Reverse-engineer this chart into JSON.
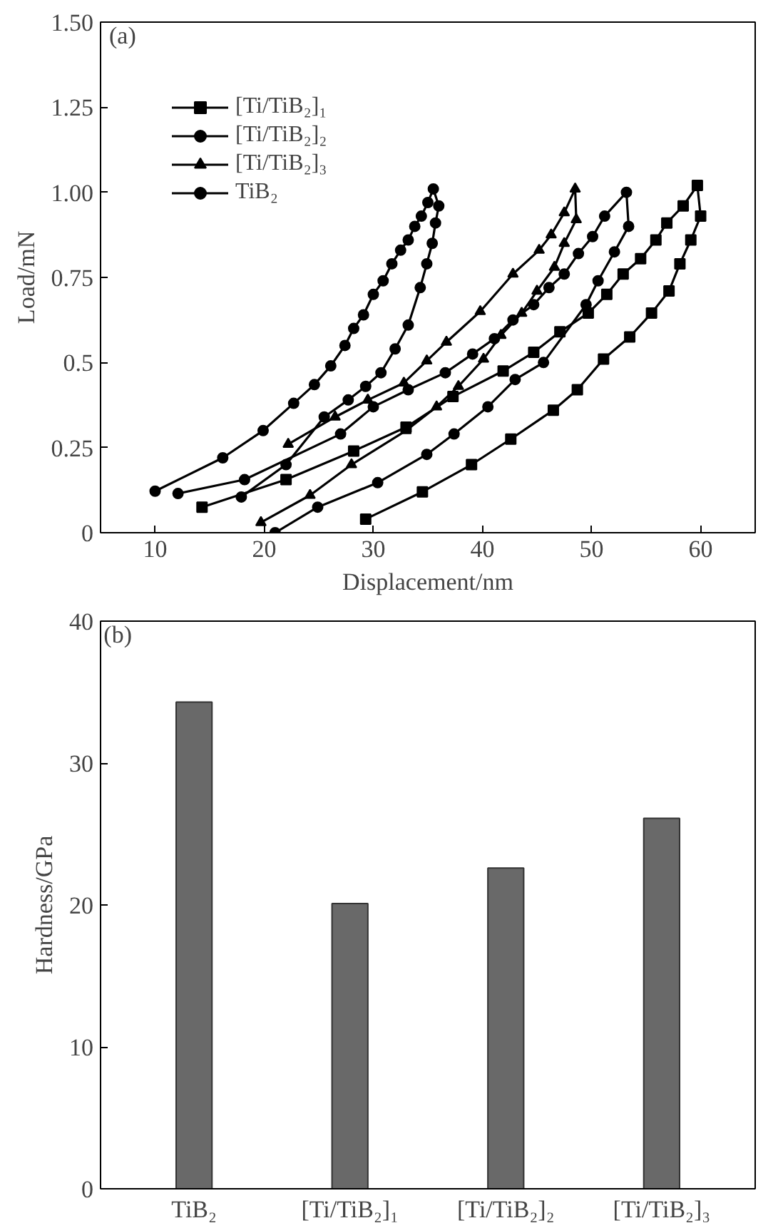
{
  "chart_data": [
    {
      "type": "line",
      "xlabel": "Displacement/nm",
      "ylabel": "Load/mN",
      "annotations": [
        "(a)"
      ],
      "xlim": [
        5,
        65
      ],
      "xticks": [
        10,
        20,
        30,
        40,
        50,
        60
      ],
      "ylim": [
        0,
        1.5
      ],
      "yticks": [
        0,
        0.25,
        0.5,
        0.75,
        {
          "value": 1,
          "label": "1.00"
        },
        {
          "value": 1.25,
          "label": "1.25"
        },
        {
          "value": 1.5,
          "label": "1.50"
        }
      ],
      "legend": "top left",
      "grid": false,
      "line_style": "solid",
      "series": [
        {
          "name": "[Ti/TiB₂]₁",
          "color": "#000000",
          "marker": "square",
          "x": [
            14.3,
            22.0,
            28.2,
            33.0,
            37.3,
            41.9,
            44.7,
            47.1,
            49.7,
            51.4,
            52.9,
            54.5,
            55.9,
            56.9,
            58.4,
            59.7,
            60.0,
            59.1,
            58.1,
            57.1,
            55.5,
            53.5,
            51.1,
            48.7,
            46.5,
            42.6,
            39.0,
            34.5,
            29.3
          ],
          "values": [
            0.075,
            0.156,
            0.24,
            0.31,
            0.4,
            0.475,
            0.53,
            0.59,
            0.645,
            0.7,
            0.76,
            0.805,
            0.86,
            0.91,
            0.96,
            1.02,
            0.93,
            0.86,
            0.79,
            0.71,
            0.645,
            0.575,
            0.51,
            0.42,
            0.36,
            0.275,
            0.2,
            0.12,
            0.04
          ]
        },
        {
          "name": "[Ti/TiB₂]₂",
          "color": "#000000",
          "marker": "circle",
          "x": [
            12.1,
            18.2,
            27.0,
            30.0,
            33.2,
            36.6,
            39.1,
            41.1,
            42.8,
            44.7,
            46.1,
            47.5,
            48.8,
            50.1,
            51.2,
            53.2,
            53.4,
            52.1,
            50.6,
            49.5,
            45.6,
            43.0,
            40.5,
            37.4,
            34.9,
            30.4,
            24.9,
            21.0
          ],
          "values": [
            0.115,
            0.156,
            0.29,
            0.37,
            0.42,
            0.47,
            0.525,
            0.57,
            0.625,
            0.67,
            0.72,
            0.76,
            0.82,
            0.87,
            0.93,
            1.0,
            0.9,
            0.825,
            0.74,
            0.67,
            0.5,
            0.45,
            0.37,
            0.29,
            0.23,
            0.147,
            0.075,
            0.0
          ]
        },
        {
          "name": "[Ti/TiB₂]₃",
          "color": "#000000",
          "marker": "triangle",
          "x": [
            22.2,
            26.5,
            29.5,
            32.8,
            34.9,
            36.7,
            39.8,
            42.8,
            45.2,
            46.3,
            47.5,
            48.5,
            48.6,
            47.5,
            46.6,
            45.0,
            43.6,
            41.7,
            40.1,
            37.8,
            35.8,
            33.0,
            28.0,
            24.2,
            19.7
          ],
          "values": [
            0.26,
            0.34,
            0.39,
            0.44,
            0.505,
            0.56,
            0.65,
            0.76,
            0.83,
            0.875,
            0.94,
            1.01,
            0.92,
            0.85,
            0.78,
            0.71,
            0.645,
            0.58,
            0.51,
            0.43,
            0.37,
            0.3,
            0.2,
            0.11,
            0.03
          ]
        },
        {
          "name": "TiB₂",
          "color": "#000000",
          "marker": "circle",
          "x": [
            10.0,
            16.2,
            19.9,
            22.7,
            24.6,
            26.1,
            27.4,
            28.2,
            29.1,
            30.0,
            30.9,
            31.7,
            32.5,
            33.2,
            33.8,
            34.4,
            35.0,
            35.5,
            36.0,
            35.7,
            35.4,
            34.9,
            34.3,
            33.2,
            32.0,
            30.7,
            29.3,
            27.7,
            25.5,
            22.0,
            17.9
          ],
          "values": [
            0.122,
            0.22,
            0.3,
            0.38,
            0.435,
            0.49,
            0.55,
            0.6,
            0.64,
            0.7,
            0.74,
            0.79,
            0.83,
            0.86,
            0.9,
            0.93,
            0.97,
            1.01,
            0.96,
            0.91,
            0.85,
            0.79,
            0.72,
            0.61,
            0.54,
            0.47,
            0.43,
            0.39,
            0.34,
            0.2,
            0.105
          ]
        }
      ]
    },
    {
      "type": "bar",
      "ylabel": "Hardness/GPa",
      "annotations": [
        "(b)"
      ],
      "categories": [
        "TiB₂",
        "[Ti/TiB₂]₁",
        "[Ti/TiB₂]₂",
        "[Ti/TiB₂]₃"
      ],
      "values": [
        34.3,
        20.1,
        22.6,
        26.1
      ],
      "color": "#696969",
      "ylim": [
        0,
        40
      ],
      "yticks": [
        0,
        10,
        20,
        30,
        40
      ],
      "grid": false
    }
  ]
}
